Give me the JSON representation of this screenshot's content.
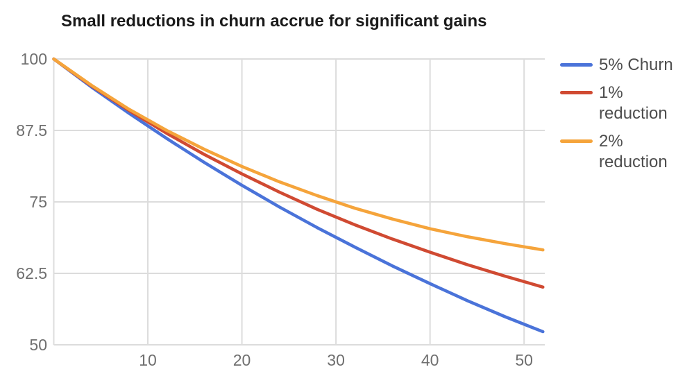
{
  "page": {
    "background": "#FFFFFF"
  },
  "chart_data": {
    "type": "line",
    "title": "Small reductions in churn accrue for significant gains",
    "title_color": "#1A1A1A",
    "x": [
      0,
      4,
      8,
      12,
      16,
      20,
      24,
      28,
      32,
      36,
      40,
      44,
      48,
      52
    ],
    "series": [
      {
        "name": "5% Churn",
        "color": "#4A73D9",
        "values": [
          100,
          95.1,
          90.5,
          86.1,
          81.9,
          77.9,
          74.1,
          70.5,
          67.1,
          63.8,
          60.7,
          57.7,
          54.9,
          52.3
        ]
      },
      {
        "name": "1% reduction",
        "color": "#D04A32",
        "values": [
          100,
          95.3,
          91.0,
          87.0,
          83.3,
          79.9,
          76.7,
          73.7,
          71.0,
          68.5,
          66.2,
          64.0,
          62.0,
          60.1
        ]
      },
      {
        "name": "2% reduction",
        "color": "#F5A43B",
        "values": [
          100,
          95.4,
          91.2,
          87.5,
          84.2,
          81.2,
          78.5,
          76.1,
          73.9,
          72.0,
          70.3,
          68.9,
          67.7,
          66.6
        ]
      }
    ],
    "x_ticks": [
      10,
      20,
      30,
      40,
      50
    ],
    "y_ticks": [
      50,
      62.5,
      75,
      87.5,
      100
    ],
    "xlim": [
      0,
      52.2
    ],
    "ylim": [
      50,
      100
    ],
    "grid": true,
    "legend_position": "right",
    "grid_color": "#DCDCDC",
    "axis_label_color": "#6F6F6F",
    "legend_text_color": "#4D4D4D",
    "line_width": 4.5
  }
}
